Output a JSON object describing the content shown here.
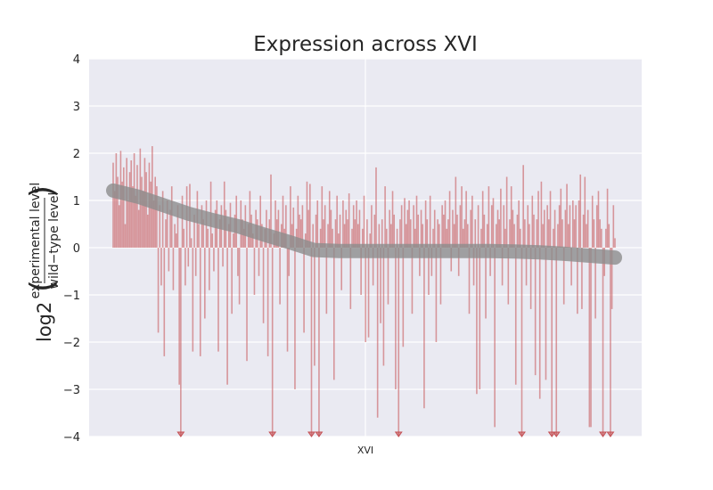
{
  "chart_data": {
    "type": "bar",
    "title": "Expression across XVI",
    "ylabel": {
      "prefix": "log2",
      "numerator": "experimental level",
      "denominator": "wild−type level"
    },
    "xlabel": "",
    "x_tick_labels": [
      "XVI"
    ],
    "y_tick_labels": [
      "−4",
      "−3",
      "−2",
      "−1",
      "0",
      "1",
      "2",
      "3",
      "4"
    ],
    "ylim": [
      -4,
      4
    ],
    "grid": true,
    "clipped_markers_at": -4,
    "bars": [
      1.8,
      1.2,
      2.0,
      1.5,
      0.9,
      2.05,
      1.4,
      1.7,
      0.5,
      1.9,
      1.0,
      1.6,
      1.85,
      1.3,
      2.0,
      1.1,
      1.75,
      0.8,
      2.1,
      1.5,
      1.2,
      1.9,
      1.6,
      0.7,
      1.8,
      1.4,
      2.15,
      1.0,
      1.5,
      1.3,
      -1.8,
      0.9,
      -0.8,
      1.2,
      -2.3,
      0.6,
      1.0,
      -0.5,
      0.8,
      1.3,
      -0.9,
      0.5,
      0.3,
      0.9,
      -2.9,
      -4.0,
      1.1,
      0.4,
      -0.8,
      1.3,
      -0.4,
      1.35,
      0.2,
      -2.2,
      0.7,
      -0.6,
      1.2,
      0.5,
      -2.3,
      0.9,
      0.6,
      -1.5,
      1.0,
      0.4,
      -0.9,
      1.4,
      0.3,
      -0.5,
      0.8,
      1.0,
      -2.2,
      0.6,
      0.9,
      -0.4,
      1.4,
      0.8,
      -2.9,
      0.5,
      0.95,
      -1.4,
      0.3,
      0.7,
      1.1,
      -0.6,
      -1.2,
      1.0,
      0.6,
      0.4,
      0.9,
      -2.4,
      0.5,
      1.2,
      0.7,
      0.3,
      -1.0,
      0.8,
      0.6,
      -0.6,
      1.1,
      0.5,
      -1.6,
      0.4,
      0.8,
      -2.3,
      0.6,
      1.55,
      -4.0,
      0.3,
      1.0,
      0.6,
      0.8,
      -1.2,
      0.5,
      1.1,
      0.4,
      0.9,
      -2.2,
      -0.6,
      1.3,
      0.5,
      0.85,
      -3.0,
      0.4,
      1.1,
      0.7,
      0.6,
      0.9,
      -1.8,
      0.3,
      1.4,
      0.8,
      1.35,
      -4.0,
      0.5,
      -2.5,
      0.7,
      1.0,
      -4.0,
      0.4,
      1.3,
      0.6,
      0.9,
      -1.4,
      0.5,
      1.2,
      0.8,
      0.4,
      -2.8,
      0.6,
      1.1,
      0.3,
      0.7,
      -0.9,
      1.0,
      0.5,
      0.8,
      0.6,
      1.15,
      -1.3,
      0.4,
      0.9,
      0.6,
      1.0,
      0.5,
      0.8,
      -1.0,
      0.4,
      1.1,
      -2.0,
      0.6,
      -1.9,
      0.3,
      0.9,
      -0.8,
      0.7,
      1.7,
      -3.6,
      0.5,
      -1.6,
      0.6,
      -2.5,
      1.3,
      0.4,
      -1.2,
      0.8,
      0.5,
      1.2,
      0.7,
      -3.0,
      0.4,
      -4.0,
      0.6,
      0.9,
      -2.1,
      1.05,
      0.5,
      0.8,
      1.0,
      0.6,
      -1.4,
      0.9,
      0.4,
      1.1,
      0.7,
      -0.6,
      0.8,
      0.5,
      -3.4,
      1.0,
      0.6,
      -1.0,
      1.1,
      -0.6,
      0.4,
      0.8,
      -2.0,
      0.6,
      0.5,
      -1.2,
      0.9,
      0.7,
      1.0,
      0.4,
      0.6,
      1.2,
      -0.5,
      0.8,
      0.5,
      1.5,
      0.7,
      -0.6,
      0.9,
      1.3,
      0.4,
      0.6,
      1.2,
      0.5,
      -1.4,
      0.8,
      1.1,
      -0.8,
      0.6,
      -3.1,
      0.9,
      -3.0,
      0.4,
      1.2,
      0.7,
      -1.5,
      0.5,
      1.3,
      -0.6,
      0.9,
      1.05,
      -3.8,
      0.5,
      0.8,
      0.6,
      1.25,
      -0.8,
      0.9,
      0.4,
      1.5,
      -1.2,
      0.6,
      1.3,
      0.8,
      0.5,
      -2.9,
      0.7,
      1.0,
      0.4,
      -4.0,
      1.75,
      0.6,
      -0.8,
      0.9,
      0.5,
      -1.3,
      1.1,
      0.7,
      -2.7,
      0.6,
      1.2,
      -3.2,
      1.4,
      0.5,
      0.8,
      -2.8,
      0.9,
      0.6,
      1.2,
      -4.0,
      0.4,
      0.8,
      -4.0,
      0.5,
      0.9,
      1.25,
      0.6,
      -1.2,
      0.8,
      1.35,
      0.5,
      0.9,
      -0.8,
      1.0,
      0.6,
      0.9,
      -1.4,
      1.0,
      1.55,
      -1.3,
      0.7,
      1.5,
      0.5,
      0.8,
      -3.8,
      -3.8,
      1.1,
      0.6,
      -1.5,
      0.9,
      1.2,
      0.6,
      0.4,
      -4.0,
      -0.6,
      0.4,
      1.25,
      0.5,
      -4.0,
      -1.3,
      0.9,
      0.2
    ],
    "trend": {
      "x": [
        0.0,
        0.05,
        0.1,
        0.15,
        0.2,
        0.25,
        0.3,
        0.35,
        0.4,
        0.45,
        0.5,
        0.55,
        0.6,
        0.65,
        0.7,
        0.75,
        0.8,
        0.85,
        0.9,
        0.95,
        1.0
      ],
      "y": [
        1.21,
        1.08,
        0.9,
        0.72,
        0.58,
        0.45,
        0.28,
        0.12,
        -0.05,
        -0.07,
        -0.07,
        -0.07,
        -0.07,
        -0.07,
        -0.07,
        -0.07,
        -0.08,
        -0.1,
        -0.13,
        -0.17,
        -0.21
      ]
    }
  },
  "colors": {
    "bar": "#c44e52",
    "trend": "#8c8c8c",
    "background": "#eaeaf2",
    "grid": "#ffffff"
  }
}
